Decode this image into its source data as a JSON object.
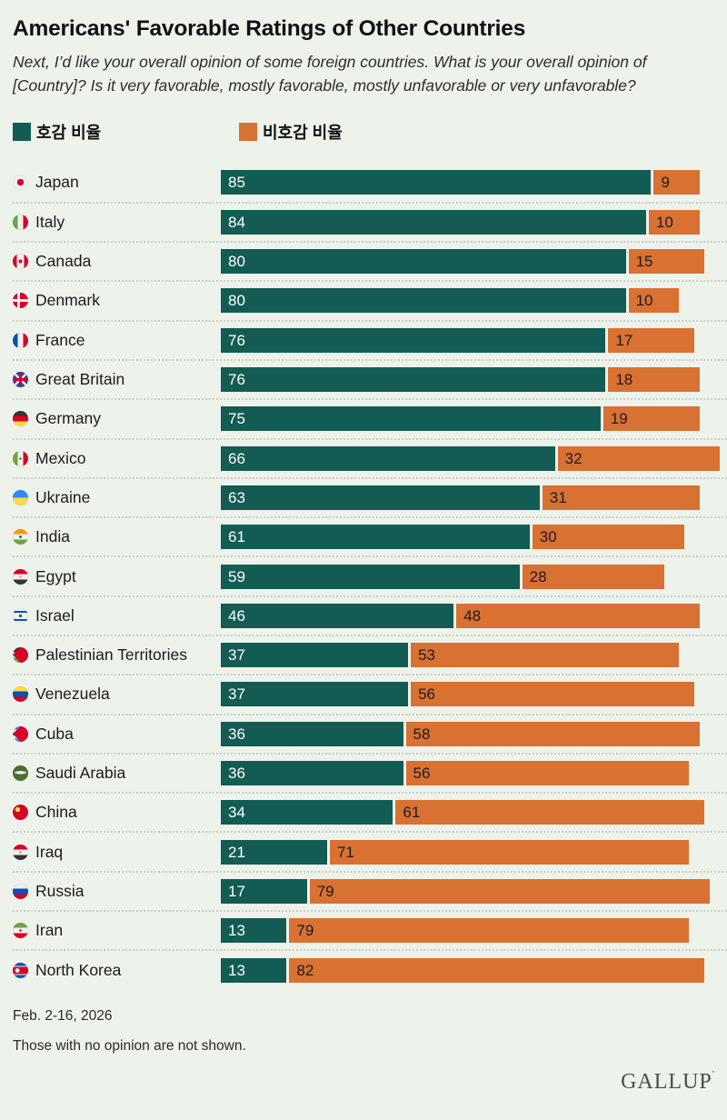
{
  "page": {
    "title": "Americans' Favorable Ratings of Other Countries",
    "subtitle": "Next, I’d like your overall opinion of some foreign countries. What is your overall opinion of [Country]? Is it very favorable, mostly favorable, mostly unfavorable or very unfavorable?",
    "footnote_date": "Feb. 2-16, 2026",
    "footnote_note": "Those with no opinion are not shown.",
    "brand": "GALLUP",
    "brand_trademark": "’",
    "background_color": "#edf2ea"
  },
  "legend": {
    "favorable_label": "호감 비율",
    "unfavorable_label": "비호감 비율",
    "favorable_color": "#135c53",
    "unfavorable_color": "#d97133"
  },
  "chart_data": {
    "type": "bar",
    "orientation": "horizontal",
    "axis_max": 100,
    "grid": false,
    "legend_position": "top-left",
    "categories": [
      "Japan",
      "Italy",
      "Canada",
      "Denmark",
      "France",
      "Great Britain",
      "Germany",
      "Mexico",
      "Ukraine",
      "India",
      "Egypt",
      "Israel",
      "Palestinian Territories",
      "Venezuela",
      "Cuba",
      "Saudi Arabia",
      "China",
      "Iraq",
      "Russia",
      "Iran",
      "North Korea"
    ],
    "flags": [
      "japan",
      "italy",
      "canada",
      "denmark",
      "france",
      "great-britain",
      "germany",
      "mexico",
      "ukraine",
      "india",
      "egypt",
      "israel",
      "palestinian-territories",
      "venezuela",
      "cuba",
      "saudi-arabia",
      "china",
      "iraq",
      "russia",
      "iran",
      "north-korea"
    ],
    "series": [
      {
        "name": "호감 비율",
        "color": "#135c53",
        "values": [
          85,
          84,
          80,
          80,
          76,
          76,
          75,
          66,
          63,
          61,
          59,
          46,
          37,
          37,
          36,
          36,
          34,
          21,
          17,
          13,
          13
        ]
      },
      {
        "name": "비호감 비율",
        "color": "#d97133",
        "values": [
          9,
          10,
          15,
          10,
          17,
          18,
          19,
          32,
          31,
          30,
          28,
          48,
          53,
          56,
          58,
          56,
          61,
          71,
          79,
          79,
          82
        ]
      }
    ]
  }
}
